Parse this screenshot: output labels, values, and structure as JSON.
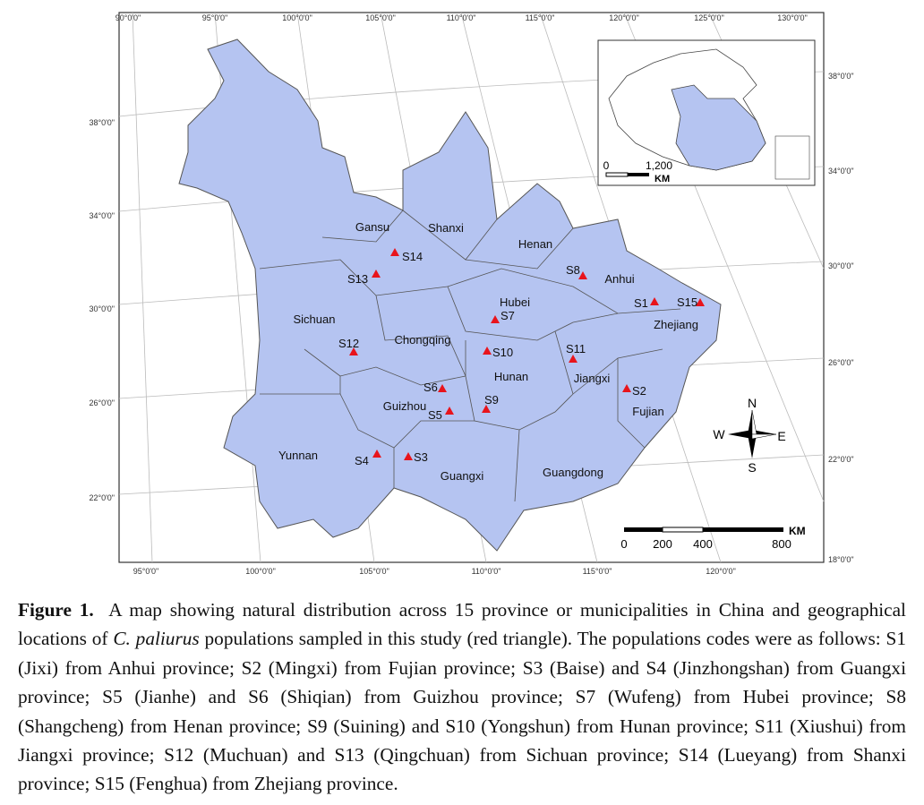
{
  "map": {
    "top_labels": [
      "90°0'0\"",
      "95°0'0\"",
      "100°0'0\"",
      "105°0'0\"",
      "110°0'0\"",
      "115°0'0\"",
      "120°0'0\"",
      "125°0'0\"",
      "130°0'0\""
    ],
    "bottom_labels": [
      "95°0'0\"",
      "100°0'0\"",
      "105°0'0\"",
      "110°0'0\"",
      "115°0'0\"",
      "120°0'0\""
    ],
    "left_labels": [
      "38°0'0\"",
      "34°0'0\"",
      "30°0'0\"",
      "26°0'0\"",
      "22°0'0\""
    ],
    "right_labels": [
      "38°0'0\"",
      "34°0'0\"",
      "30°0'0\"",
      "26°0'0\"",
      "22°0'0\"",
      "18°0'0\""
    ],
    "provinces": [
      "Gansu",
      "Shanxi",
      "Henan",
      "Anhui",
      "Sichuan",
      "Chongqing",
      "Hubei",
      "Zhejiang",
      "Guizhou",
      "Hunan",
      "Jiangxi",
      "Fujian",
      "Yunnan",
      "Guangxi",
      "Guangdong"
    ],
    "sites": [
      "S1",
      "S2",
      "S3",
      "S4",
      "S5",
      "S6",
      "S7",
      "S8",
      "S9",
      "S10",
      "S11",
      "S12",
      "S13",
      "S14",
      "S15"
    ],
    "compass": {
      "north": "N",
      "south": "S",
      "east": "E",
      "west": "W"
    },
    "scale_bar": {
      "labels": [
        "0",
        "200",
        "400",
        "800"
      ],
      "unit": "KM"
    },
    "inset_scale": {
      "labels": [
        "0",
        "1,200"
      ],
      "unit": "KM"
    }
  },
  "caption": {
    "label": "Figure 1.",
    "text_1": "A map showing natural distribution across 15 province or municipalities in China and geographical locations of",
    "species": "C. paliurus",
    "text_2": "populations sampled in this study (red triangle). The populations codes were as follows: S1 (Jixi) from Anhui province; S2 (Mingxi) from Fujian province; S3 (Baise) and S4 (Jinzhongshan) from Guangxi province; S5 (Jianhe) and S6 (Shiqian) from Guizhou province; S7 (Wufeng) from Hubei province; S8 (Shangcheng) from Henan province; S9 (Suining) and S10 (Yongshun) from Hunan province; S11 (Xiushui) from Jiangxi province; S12 (Muchuan) and S13 (Qingchuan) from Sichuan province; S14 (Lueyang) from Shanxi province; S15 (Fenghua) from Zhejiang province."
  }
}
